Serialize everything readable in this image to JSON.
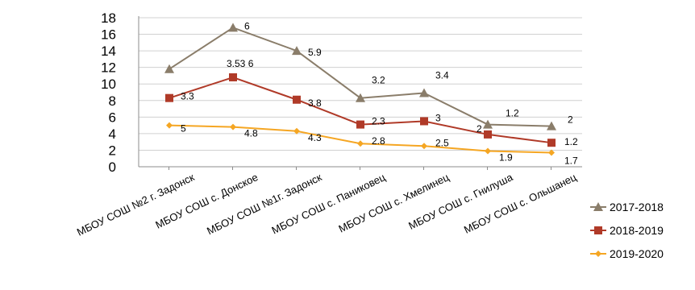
{
  "chart_data": {
    "type": "line",
    "categories": [
      "МБОУ СОШ №2 г. Задонск",
      "МБОУ СОШ с. Донское",
      "МБОУ СОШ №1г. Задонск",
      "МБОУ СОШ с. Паниковец",
      "МБОУ СОШ с. Хмелинец",
      "МБОУ СОШ с. Гнилуша",
      "МБОУ СОШ с. Ольшанец"
    ],
    "y_ticks": [
      "0",
      "2",
      "4",
      "6",
      "8",
      "10",
      "12",
      "14",
      "16",
      "18"
    ],
    "ylim": [
      0,
      18
    ],
    "grid": true,
    "legend_position": "right",
    "series": [
      {
        "name": "2017-2018",
        "color": "#8a7d6a",
        "marker": "triangle",
        "values": [
          11.8,
          16.8,
          14.0,
          8.3,
          8.9,
          5.1,
          4.9
        ],
        "labels": [
          "",
          "6",
          "5.9",
          "3.2",
          "3.4",
          "1.2",
          "2"
        ]
      },
      {
        "name": "2018-2019",
        "color": "#b03a28",
        "marker": "square",
        "values": [
          8.3,
          10.8,
          8.1,
          5.1,
          5.5,
          3.9,
          2.9
        ],
        "labels": [
          "3.3",
          "3.53 6",
          "3.8",
          "2.3",
          "3",
          "2",
          "1.2"
        ]
      },
      {
        "name": "2019-2020",
        "color": "#f5a623",
        "marker": "diamond",
        "values": [
          5.0,
          4.8,
          4.3,
          2.8,
          2.5,
          1.9,
          1.7
        ],
        "labels": [
          "5",
          "4.8",
          "4.3",
          "2.8",
          "2.5",
          "1.9",
          "1.7"
        ]
      }
    ]
  }
}
